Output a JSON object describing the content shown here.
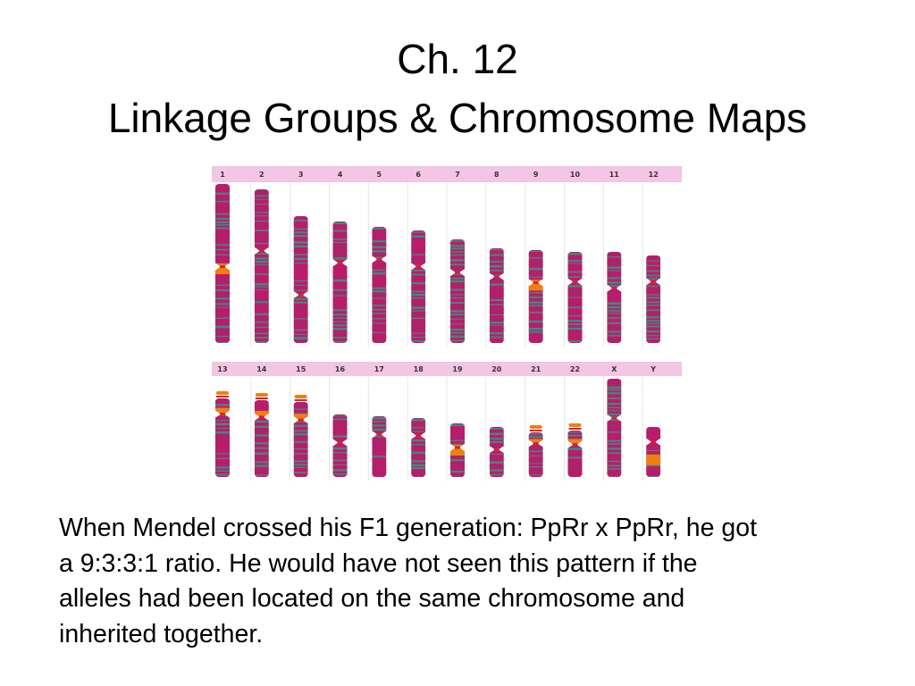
{
  "slide": {
    "title_line1": "Ch. 12",
    "title_line2": "Linkage Groups & Chromosome Maps",
    "body_lines": [
      "When Mendel crossed his F1 generation:  PpRr x PpRr, he got",
      "a 9:3:3:1 ratio.   He would have not seen this pattern if the",
      "alleles had been located on the same chromosome and",
      "inherited together."
    ]
  },
  "karyotype": {
    "row1_labels": [
      "1",
      "2",
      "3",
      "4",
      "5",
      "6",
      "7",
      "8",
      "9",
      "10",
      "11",
      "12"
    ],
    "row2_labels": [
      "13",
      "14",
      "15",
      "16",
      "17",
      "18",
      "19",
      "20",
      "21",
      "22",
      "X",
      "Y"
    ],
    "colors": {
      "header": "#f3c6e3",
      "magenta": "#c2186b",
      "teal": "#3d8a7e",
      "orange": "#f07f10",
      "red": "#d8232a",
      "grid": "#e6e6e6"
    }
  }
}
